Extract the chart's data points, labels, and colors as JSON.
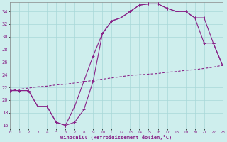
{
  "bg_color": "#ceeeed",
  "grid_color": "#a8d8d8",
  "line_color": "#882288",
  "xlim": [
    0,
    23
  ],
  "ylim": [
    15.5,
    35.5
  ],
  "yticks": [
    16,
    18,
    20,
    22,
    24,
    26,
    28,
    30,
    32,
    34
  ],
  "xticks": [
    0,
    1,
    2,
    3,
    4,
    5,
    6,
    7,
    8,
    9,
    10,
    11,
    12,
    13,
    14,
    15,
    16,
    17,
    18,
    19,
    20,
    21,
    22,
    23
  ],
  "xlabel": "Windchill (Refroidissement éolien,°C)",
  "curve1_x": [
    0,
    1,
    2,
    3,
    4,
    5,
    6,
    7,
    8,
    9,
    10,
    11,
    12,
    13,
    14,
    15,
    16,
    17,
    18,
    19,
    20,
    21,
    22,
    23
  ],
  "curve1_y": [
    21.5,
    21.5,
    21.5,
    19.0,
    19.0,
    16.5,
    16.0,
    19.0,
    23.0,
    27.0,
    30.5,
    32.5,
    33.0,
    34.0,
    35.0,
    35.2,
    35.2,
    34.5,
    34.0,
    34.0,
    33.0,
    29.0,
    29.0,
    25.5
  ],
  "curve2_x": [
    0,
    1,
    2,
    3,
    4,
    5,
    6,
    7,
    8,
    9,
    10,
    11,
    12,
    13,
    14,
    15,
    16,
    17,
    18,
    19,
    20,
    21,
    22,
    23
  ],
  "curve2_y": [
    21.5,
    21.7,
    21.9,
    22.1,
    22.2,
    22.4,
    22.5,
    22.7,
    22.9,
    23.1,
    23.3,
    23.5,
    23.7,
    23.9,
    24.0,
    24.1,
    24.2,
    24.4,
    24.5,
    24.7,
    24.8,
    25.0,
    25.2,
    25.5
  ],
  "curve3_x": [
    0,
    1,
    2,
    3,
    4,
    5,
    6,
    7,
    8,
    9,
    10,
    11,
    12,
    13,
    14,
    15,
    16,
    17,
    18,
    19,
    20,
    21,
    22,
    23
  ],
  "curve3_y": [
    21.5,
    21.5,
    21.5,
    19.0,
    19.0,
    16.5,
    16.0,
    16.5,
    18.5,
    23.0,
    30.5,
    32.5,
    33.0,
    34.0,
    35.0,
    35.2,
    35.2,
    34.5,
    34.0,
    34.0,
    33.0,
    33.0,
    29.0,
    25.5
  ]
}
